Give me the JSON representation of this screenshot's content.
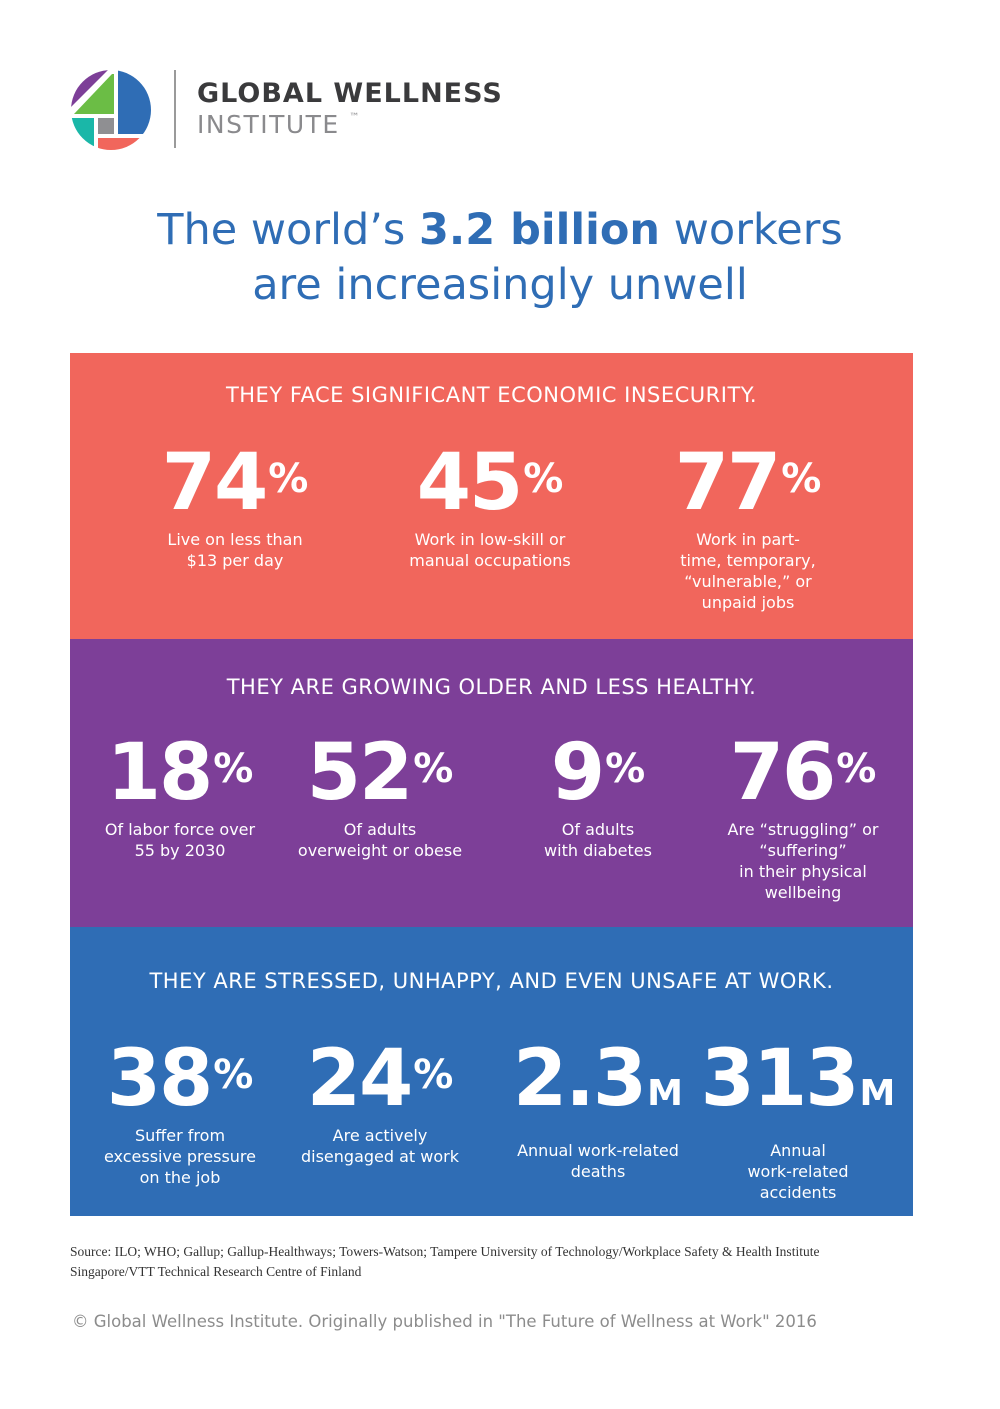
{
  "brand": {
    "name_line1": "GLOBAL WELLNESS",
    "name_line2": "INSTITUTE",
    "trademark": "™",
    "logo_colors": [
      "#7d3f98",
      "#6bbd45",
      "#2f6db5",
      "#1ab7a8",
      "#8f8f92",
      "#f1665c"
    ]
  },
  "headline": {
    "part1": "The world’s ",
    "emphasis": "3.2 billion",
    "part2": " workers",
    "line2": "are increasingly unwell"
  },
  "colors": {
    "headline": "#2f6db5",
    "economic": "#f1665c",
    "health": "#7d3f98",
    "work": "#2f6db5"
  },
  "sections": [
    {
      "heading": "THEY FACE SIGNIFICANT ECONOMIC INSECURITY.",
      "stats": [
        {
          "value": "74",
          "unit": "%",
          "label": "Live on less than\n$13 per day"
        },
        {
          "value": "45",
          "unit": "%",
          "label": "Work in low-skill or\nmanual occupations"
        },
        {
          "value": "77",
          "unit": "%",
          "label": "Work in part-\ntime, temporary,\n“vulnerable,” or\nunpaid jobs"
        }
      ]
    },
    {
      "heading": "THEY ARE GROWING OLDER AND LESS HEALTHY.",
      "stats": [
        {
          "value": "18",
          "unit": "%",
          "label": "Of labor force over\n55 by 2030"
        },
        {
          "value": "52",
          "unit": "%",
          "label": "Of adults\noverweight or obese"
        },
        {
          "value": "9",
          "unit": "%",
          "label": "Of adults\nwith diabetes"
        },
        {
          "value": "76",
          "unit": "%",
          "label": "Are “struggling” or\n“suffering”\nin their physical\nwellbeing"
        }
      ]
    },
    {
      "heading": "THEY ARE STRESSED, UNHAPPY, AND EVEN UNSAFE AT WORK.",
      "stats": [
        {
          "value": "38",
          "unit": "%",
          "label": "Suffer from\nexcessive pressure\non the job"
        },
        {
          "value": "24",
          "unit": "%",
          "label": "Are actively\ndisengaged at work"
        },
        {
          "value": "2.3",
          "unit": "M",
          "label": "Annual work-related\ndeaths"
        },
        {
          "value": "313",
          "unit": "M",
          "label": "Annual\nwork-related\naccidents"
        }
      ]
    }
  ],
  "source": "Source: ILO; WHO; Gallup; Gallup-Healthways; Towers-Watson; Tampere University of Technology/Workplace Safety & Health Institute Singapore/VTT Technical Research Centre of Finland",
  "copyright": "© Global Wellness Institute. Originally published in \"The Future of Wellness at Work\" 2016"
}
